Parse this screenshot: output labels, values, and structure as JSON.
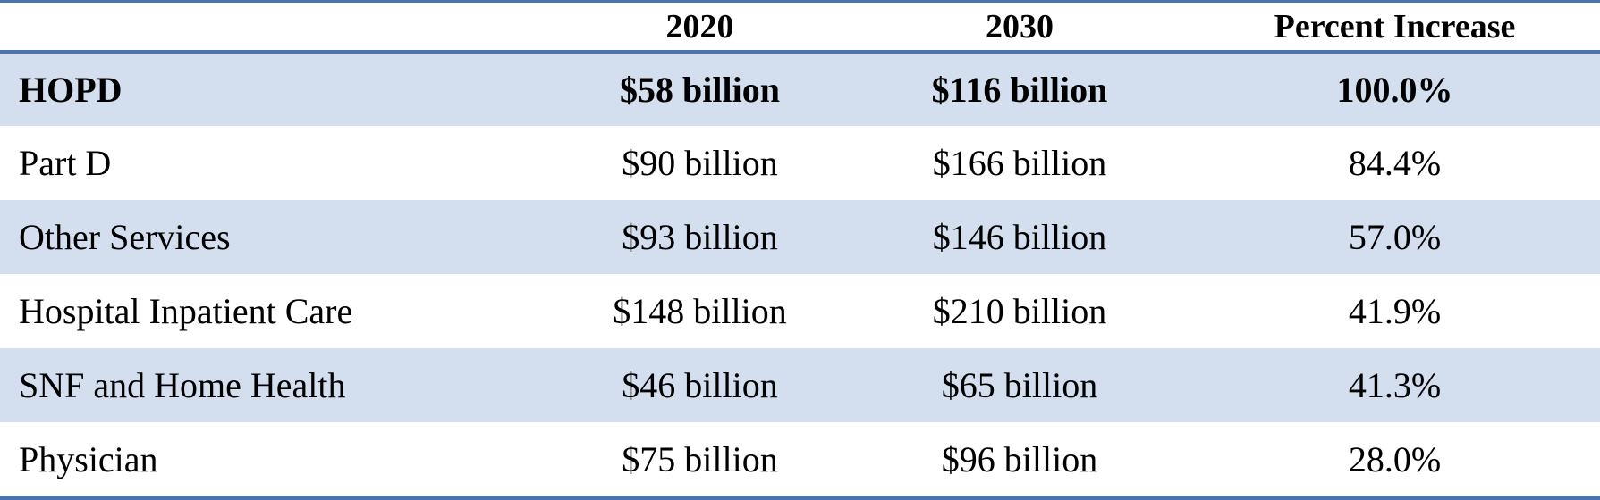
{
  "table": {
    "columns": [
      "",
      "2020",
      "2030",
      "Percent Increase"
    ],
    "rows": [
      {
        "category": "HOPD",
        "y2020": "$58 billion",
        "y2030": "$116 billion",
        "increase": "100.0%"
      },
      {
        "category": "Part D",
        "y2020": "$90 billion",
        "y2030": "$166 billion",
        "increase": "84.4%"
      },
      {
        "category": "Other Services",
        "y2020": "$93 billion",
        "y2030": "$146 billion",
        "increase": "57.0%"
      },
      {
        "category": "Hospital Inpatient Care",
        "y2020": "$148 billion",
        "y2030": "$210 billion",
        "increase": "41.9%"
      },
      {
        "category": "SNF and Home Health",
        "y2020": "$46 billion",
        "y2030": "$65 billion",
        "increase": "41.3%"
      },
      {
        "category": "Physician",
        "y2020": "$75 billion",
        "y2030": "$96 billion",
        "increase": "28.0%"
      }
    ]
  },
  "colors": {
    "rule": "#4a74ad",
    "band": "#d3dfee",
    "text": "#000000"
  }
}
